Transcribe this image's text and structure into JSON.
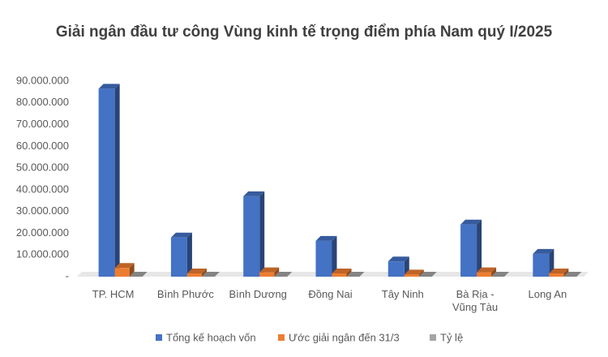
{
  "chart_data": {
    "type": "bar3d",
    "title": "Giải ngân đầu tư công Vùng kinh tế trọng điểm phía Nam quý I/2025",
    "categories": [
      "TP. HCM",
      "Bình Phước",
      "Bình Dương",
      "Đồng Nai",
      "Tây Ninh",
      "Bà Rịa - Vũng Tàu",
      "Long An"
    ],
    "series": [
      {
        "name": "Tổng kế hoạch vốn",
        "color": "#4472c4",
        "values": [
          86500000,
          18000000,
          37000000,
          16500000,
          7000000,
          24000000,
          10500000
        ]
      },
      {
        "name": "Ước giải ngân đến 31/3",
        "color": "#ed7d31",
        "values": [
          4000000,
          1500000,
          2000000,
          1500000,
          1000000,
          2000000,
          1500000
        ]
      },
      {
        "name": "Tỷ lệ",
        "color": "#a5a5a5",
        "values": [
          0,
          0,
          0,
          0,
          0,
          0,
          0
        ]
      }
    ],
    "ylim": [
      0,
      90000000
    ],
    "yticks": [
      {
        "value": 0,
        "label": "-"
      },
      {
        "value": 10000000,
        "label": "10.000.000"
      },
      {
        "value": 20000000,
        "label": "20.000.000"
      },
      {
        "value": 30000000,
        "label": "30.000.000"
      },
      {
        "value": 40000000,
        "label": "40.000.000"
      },
      {
        "value": 50000000,
        "label": "50.000.000"
      },
      {
        "value": 60000000,
        "label": "60.000.000"
      },
      {
        "value": 70000000,
        "label": "70.000.000"
      },
      {
        "value": 80000000,
        "label": "80.000.000"
      },
      {
        "value": 90000000,
        "label": "90.000.000"
      }
    ],
    "legend": "bottom"
  }
}
